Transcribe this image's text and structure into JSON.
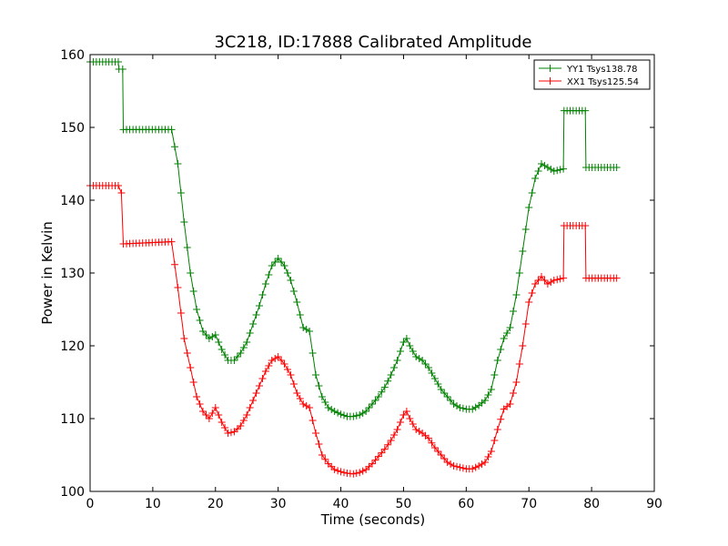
{
  "chart_data": {
    "type": "line",
    "title": "3C218, ID:17888 Calibrated Amplitude",
    "xlabel": "Time (seconds)",
    "ylabel": "Power in Kelvin",
    "xlim": [
      0,
      90
    ],
    "ylim": [
      100,
      160
    ],
    "xticks": [
      0,
      10,
      20,
      30,
      40,
      50,
      60,
      70,
      80,
      90
    ],
    "yticks": [
      100,
      110,
      120,
      130,
      140,
      150,
      160
    ],
    "grid": false,
    "legend_position": "top-right",
    "marker": "plus",
    "series": [
      {
        "name": "YY1 Tsys138.78",
        "color": "#008000",
        "points": [
          [
            0,
            159
          ],
          [
            4.5,
            159
          ],
          [
            4.6,
            158
          ],
          [
            5.2,
            158
          ],
          [
            5.3,
            149.7
          ],
          [
            13,
            149.7
          ],
          [
            14,
            145
          ],
          [
            15,
            137
          ],
          [
            16,
            130
          ],
          [
            17,
            125
          ],
          [
            18,
            122
          ],
          [
            19,
            121
          ],
          [
            20,
            121.5
          ],
          [
            21,
            119.5
          ],
          [
            22,
            118
          ],
          [
            23,
            118
          ],
          [
            24,
            119
          ],
          [
            25,
            120.5
          ],
          [
            26,
            123
          ],
          [
            27,
            125.5
          ],
          [
            28,
            128.5
          ],
          [
            29,
            131
          ],
          [
            30,
            132
          ],
          [
            31,
            131
          ],
          [
            32,
            129
          ],
          [
            33,
            126
          ],
          [
            34,
            122.5
          ],
          [
            35,
            122
          ],
          [
            36,
            116
          ],
          [
            37,
            113
          ],
          [
            38,
            111.5
          ],
          [
            39,
            111
          ],
          [
            40,
            110.6
          ],
          [
            41,
            110.3
          ],
          [
            42,
            110.3
          ],
          [
            43,
            110.5
          ],
          [
            44,
            111
          ],
          [
            45,
            112
          ],
          [
            46,
            113
          ],
          [
            47,
            114.3
          ],
          [
            48,
            116
          ],
          [
            49,
            118
          ],
          [
            50,
            120.5
          ],
          [
            50.5,
            121
          ],
          [
            51,
            120
          ],
          [
            52,
            118.5
          ],
          [
            53,
            118
          ],
          [
            54,
            117
          ],
          [
            55,
            115.5
          ],
          [
            56,
            114
          ],
          [
            57,
            113
          ],
          [
            58,
            112
          ],
          [
            59,
            111.5
          ],
          [
            60,
            111.3
          ],
          [
            61,
            111.3
          ],
          [
            62,
            111.8
          ],
          [
            63,
            112.5
          ],
          [
            64,
            114
          ],
          [
            65,
            118
          ],
          [
            66,
            121
          ],
          [
            67,
            122.5
          ],
          [
            68,
            127
          ],
          [
            69,
            133
          ],
          [
            70,
            139
          ],
          [
            71,
            143
          ],
          [
            72,
            145
          ],
          [
            73,
            144.5
          ],
          [
            74,
            144
          ],
          [
            75.5,
            144.3
          ],
          [
            75.6,
            152.3
          ],
          [
            79,
            152.3
          ],
          [
            79.1,
            144.5
          ],
          [
            84,
            144.5
          ]
        ]
      },
      {
        "name": "XX1 Tsys125.54",
        "color": "#ff0000",
        "points": [
          [
            0,
            142
          ],
          [
            4.5,
            142
          ],
          [
            5,
            141
          ],
          [
            5.3,
            134
          ],
          [
            13,
            134.3
          ],
          [
            14,
            128
          ],
          [
            15,
            121
          ],
          [
            16,
            117
          ],
          [
            17,
            113
          ],
          [
            18,
            111
          ],
          [
            19,
            110
          ],
          [
            20,
            111.5
          ],
          [
            21,
            109.5
          ],
          [
            22,
            108
          ],
          [
            23,
            108.2
          ],
          [
            24,
            109
          ],
          [
            25,
            110.5
          ],
          [
            26,
            112.5
          ],
          [
            27,
            114.5
          ],
          [
            28,
            116.5
          ],
          [
            29,
            118
          ],
          [
            30,
            118.5
          ],
          [
            31,
            117.5
          ],
          [
            32,
            116
          ],
          [
            33,
            113.5
          ],
          [
            34,
            112
          ],
          [
            35,
            111.5
          ],
          [
            36,
            108
          ],
          [
            37,
            105
          ],
          [
            38,
            103.8
          ],
          [
            39,
            103
          ],
          [
            40,
            102.7
          ],
          [
            41,
            102.5
          ],
          [
            42,
            102.4
          ],
          [
            43,
            102.6
          ],
          [
            44,
            103
          ],
          [
            45,
            103.8
          ],
          [
            46,
            104.8
          ],
          [
            47,
            105.8
          ],
          [
            48,
            107
          ],
          [
            49,
            108.5
          ],
          [
            50,
            110.5
          ],
          [
            50.5,
            111
          ],
          [
            51,
            110
          ],
          [
            52,
            108.5
          ],
          [
            53,
            108
          ],
          [
            54,
            107.3
          ],
          [
            55,
            106
          ],
          [
            56,
            105
          ],
          [
            57,
            104
          ],
          [
            58,
            103.5
          ],
          [
            59,
            103.3
          ],
          [
            60,
            103.1
          ],
          [
            61,
            103.1
          ],
          [
            62,
            103.5
          ],
          [
            63,
            104
          ],
          [
            64,
            105.5
          ],
          [
            65,
            108.5
          ],
          [
            66,
            111.3
          ],
          [
            67,
            112
          ],
          [
            68,
            115
          ],
          [
            69,
            120
          ],
          [
            70,
            126
          ],
          [
            71,
            128.5
          ],
          [
            72,
            129.5
          ],
          [
            73,
            128.5
          ],
          [
            74,
            129
          ],
          [
            75.5,
            129.3
          ],
          [
            75.6,
            136.5
          ],
          [
            79,
            136.5
          ],
          [
            79.1,
            129.3
          ],
          [
            84,
            129.3
          ]
        ]
      }
    ]
  }
}
